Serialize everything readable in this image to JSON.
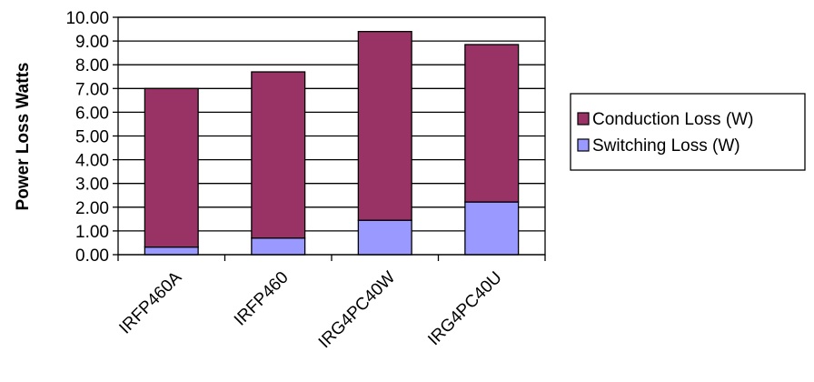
{
  "chart_data": {
    "type": "bar",
    "stacked": true,
    "title": "",
    "xlabel": "",
    "ylabel": "Power Loss Watts",
    "ylim": [
      0,
      10
    ],
    "y_ticks": [
      "0.00",
      "1.00",
      "2.00",
      "3.00",
      "4.00",
      "5.00",
      "6.00",
      "7.00",
      "8.00",
      "9.00",
      "10.00"
    ],
    "categories": [
      "IRFP460A",
      "IRFP460",
      "IRG4PC40W",
      "IRG4PC40U"
    ],
    "grid": true,
    "legend_position": "right",
    "series": [
      {
        "name": "Switching Loss (W)",
        "color": "#9999ff",
        "values": [
          0.32,
          0.7,
          1.45,
          2.22
        ]
      },
      {
        "name": "Conduction Loss (W)",
        "color": "#993366",
        "values": [
          6.68,
          7.0,
          7.95,
          6.63
        ]
      }
    ],
    "legend_order": [
      1,
      0
    ]
  }
}
